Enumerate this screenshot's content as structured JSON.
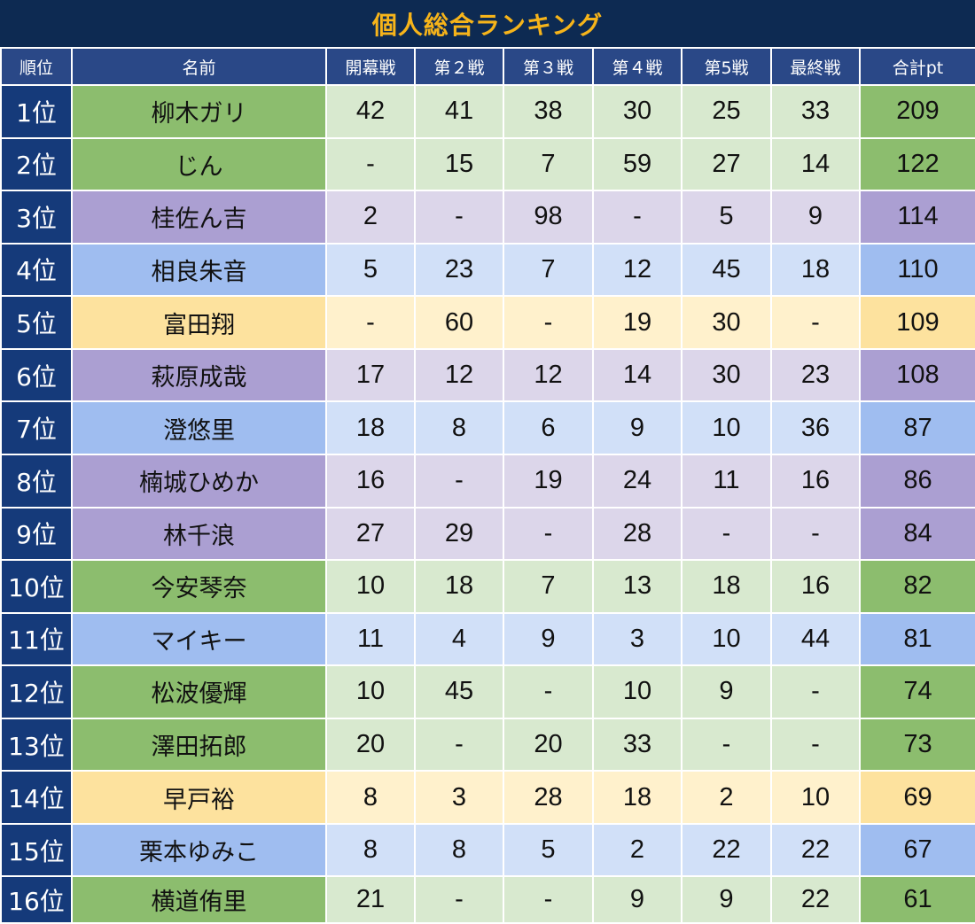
{
  "title": "個人総合ランキング",
  "columns": [
    "順位",
    "名前",
    "開幕戦",
    "第２戦",
    "第３戦",
    "第４戦",
    "第5戦",
    "最終戦",
    "合計pt"
  ],
  "colors": {
    "header_bg": "#0d2a52",
    "title_text": "#f6b41a",
    "column_header_bg": "#2a4887",
    "green": "#8cbd6e",
    "purple": "#ab9fd2",
    "blue": "#9fbdf0",
    "yellow": "#fde29e"
  },
  "rows": [
    {
      "rank": "1位",
      "name": "柳木ガリ",
      "group": "green",
      "scores": [
        "42",
        "41",
        "38",
        "30",
        "25",
        "33"
      ],
      "total": "209"
    },
    {
      "rank": "2位",
      "name": "じん",
      "group": "green",
      "scores": [
        "-",
        "15",
        "7",
        "59",
        "27",
        "14"
      ],
      "total": "122"
    },
    {
      "rank": "3位",
      "name": "桂佐ん吉",
      "group": "purple",
      "scores": [
        "2",
        "-",
        "98",
        "-",
        "5",
        "9"
      ],
      "total": "114"
    },
    {
      "rank": "4位",
      "name": "相良朱音",
      "group": "blue",
      "scores": [
        "5",
        "23",
        "7",
        "12",
        "45",
        "18"
      ],
      "total": "110"
    },
    {
      "rank": "5位",
      "name": "富田翔",
      "group": "yellow",
      "scores": [
        "-",
        "60",
        "-",
        "19",
        "30",
        "-"
      ],
      "total": "109"
    },
    {
      "rank": "6位",
      "name": "萩原成哉",
      "group": "purple",
      "scores": [
        "17",
        "12",
        "12",
        "14",
        "30",
        "23"
      ],
      "total": "108"
    },
    {
      "rank": "7位",
      "name": "澄悠里",
      "group": "blue",
      "scores": [
        "18",
        "8",
        "6",
        "9",
        "10",
        "36"
      ],
      "total": "87"
    },
    {
      "rank": "8位",
      "name": "楠城ひめか",
      "group": "purple",
      "scores": [
        "16",
        "-",
        "19",
        "24",
        "11",
        "16"
      ],
      "total": "86"
    },
    {
      "rank": "9位",
      "name": "林千浪",
      "group": "purple",
      "scores": [
        "27",
        "29",
        "-",
        "28",
        "-",
        "-"
      ],
      "total": "84"
    },
    {
      "rank": "10位",
      "name": "今安琴奈",
      "group": "green",
      "scores": [
        "10",
        "18",
        "7",
        "13",
        "18",
        "16"
      ],
      "total": "82"
    },
    {
      "rank": "11位",
      "name": "マイキー",
      "group": "blue",
      "scores": [
        "11",
        "4",
        "9",
        "3",
        "10",
        "44"
      ],
      "total": "81"
    },
    {
      "rank": "12位",
      "name": "松波優輝",
      "group": "green",
      "scores": [
        "10",
        "45",
        "-",
        "10",
        "9",
        "-"
      ],
      "total": "74"
    },
    {
      "rank": "13位",
      "name": "澤田拓郎",
      "group": "green",
      "scores": [
        "20",
        "-",
        "20",
        "33",
        "-",
        "-"
      ],
      "total": "73"
    },
    {
      "rank": "14位",
      "name": "早戸裕",
      "group": "yellow",
      "scores": [
        "8",
        "3",
        "28",
        "18",
        "2",
        "10"
      ],
      "total": "69"
    },
    {
      "rank": "15位",
      "name": "栗本ゆみこ",
      "group": "blue",
      "scores": [
        "8",
        "8",
        "5",
        "2",
        "22",
        "22"
      ],
      "total": "67"
    },
    {
      "rank": "16位",
      "name": "横道侑里",
      "group": "green",
      "scores": [
        "21",
        "-",
        "-",
        "9",
        "9",
        "22"
      ],
      "total": "61"
    }
  ]
}
